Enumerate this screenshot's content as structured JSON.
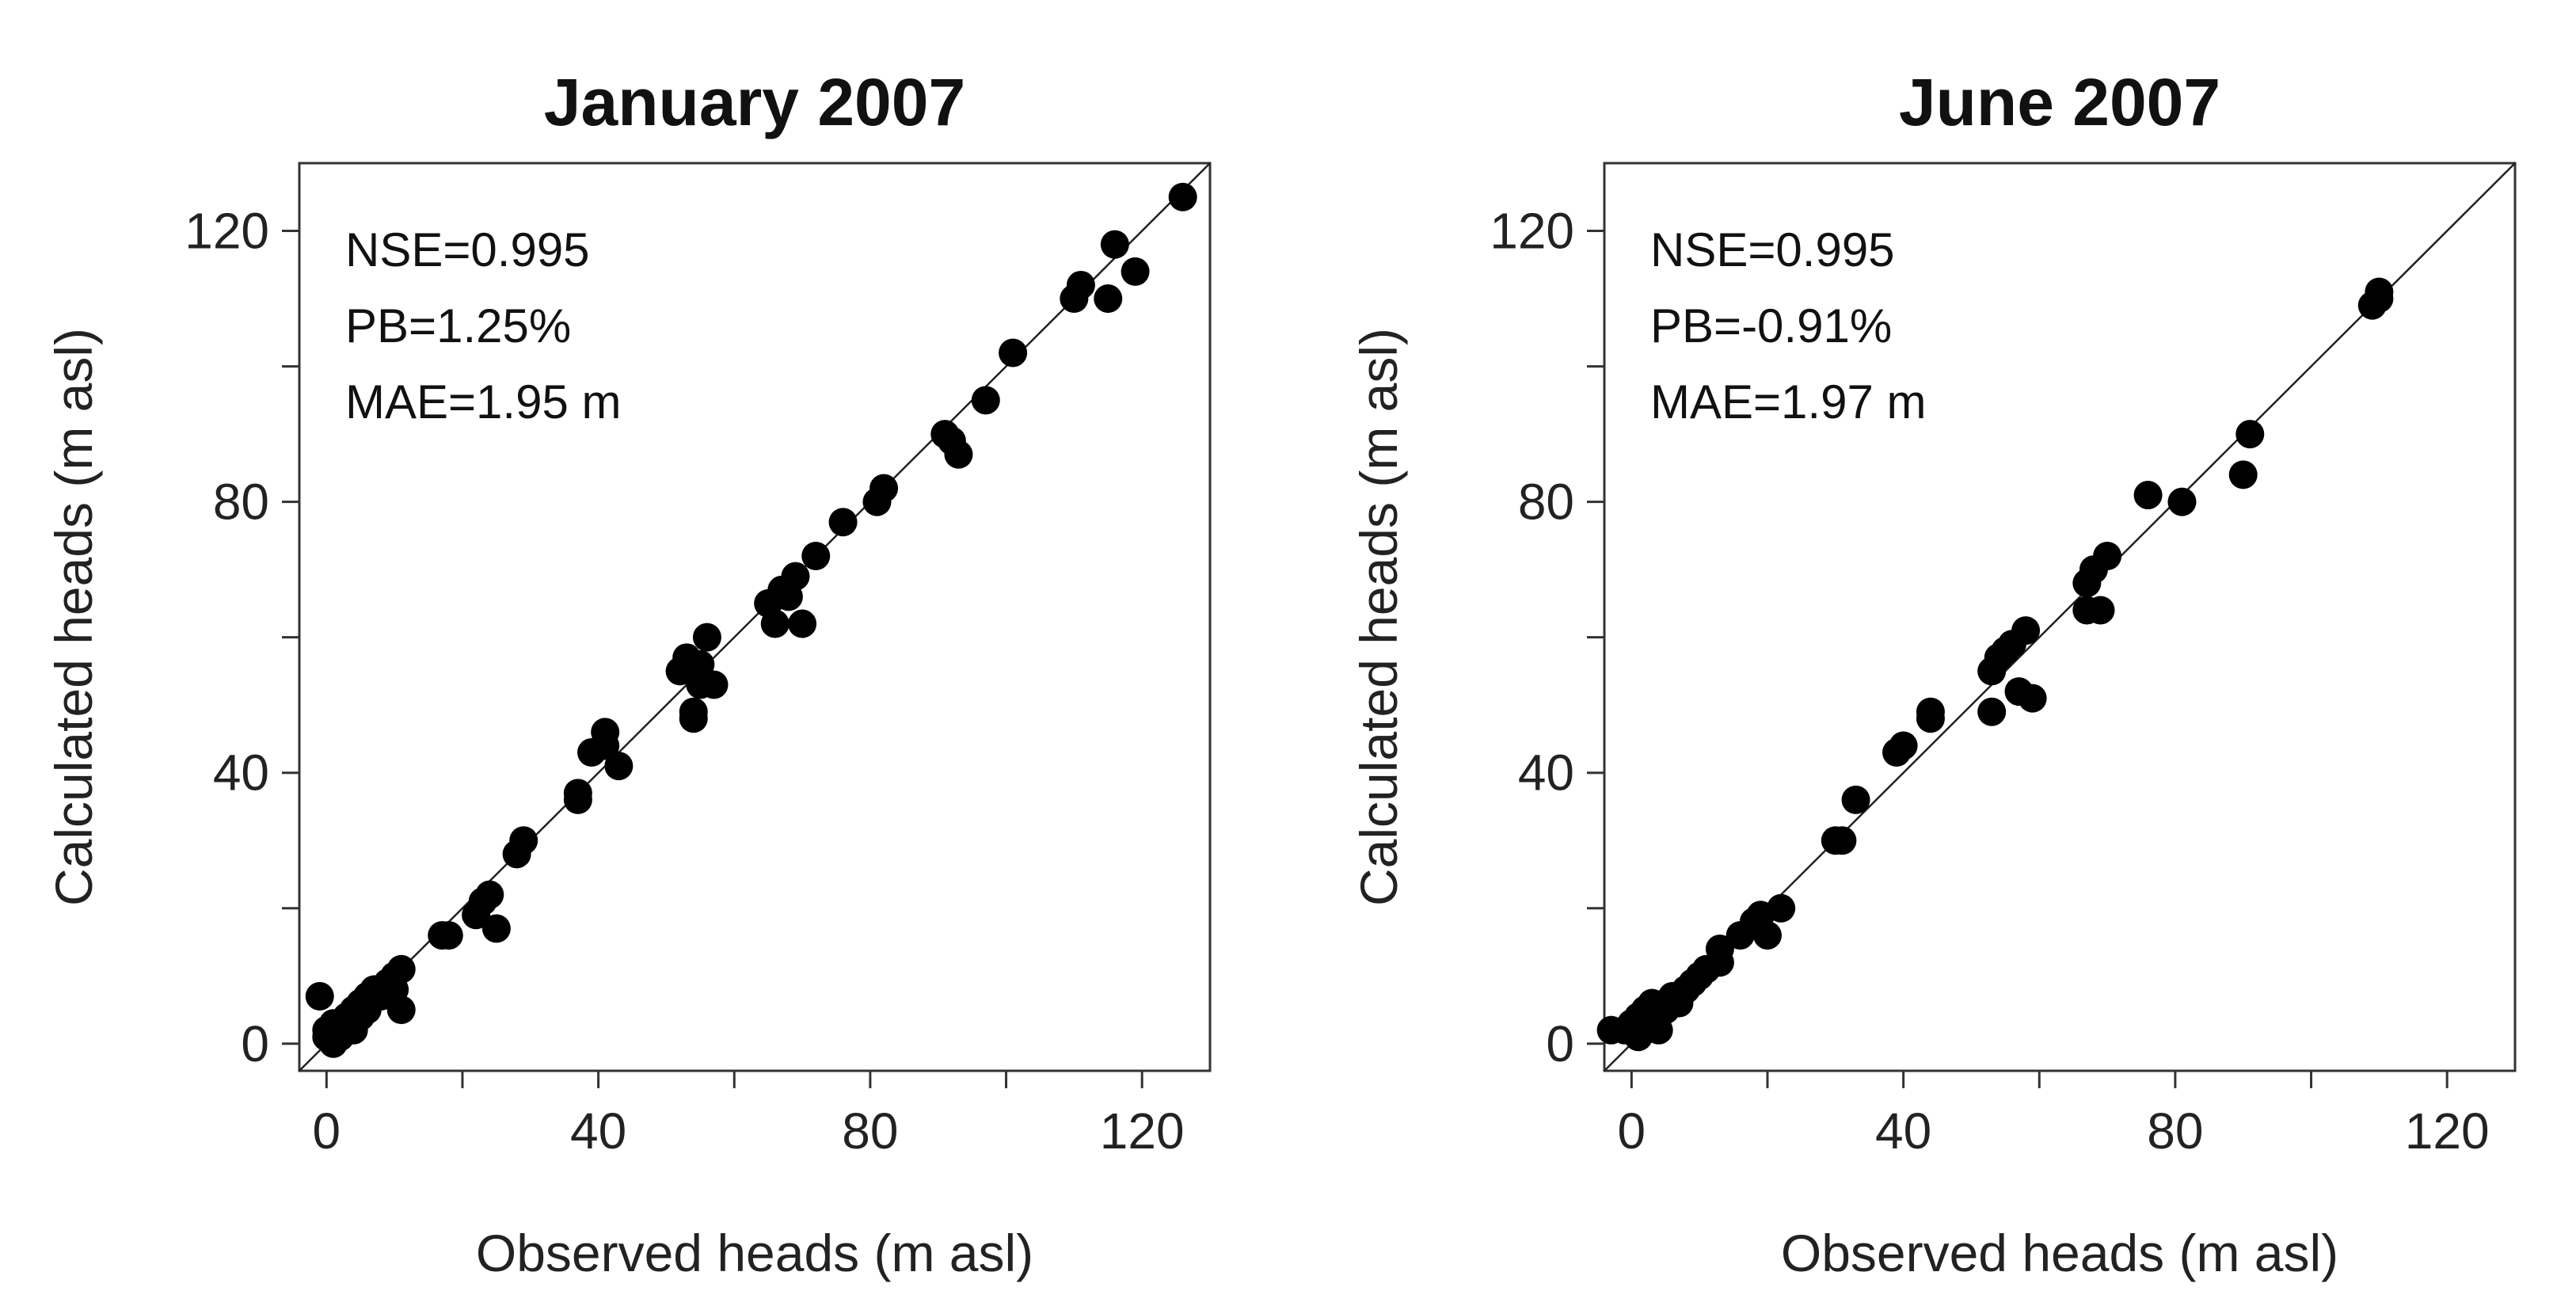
{
  "chart_data": [
    {
      "type": "scatter",
      "title": "January 2007",
      "xlabel": "Observed heads (m asl)",
      "ylabel": "Calculated heads (m asl)",
      "xlim": [
        -4,
        130
      ],
      "ylim": [
        -4,
        130
      ],
      "xticks": [
        0,
        40,
        80,
        120
      ],
      "yticks": [
        0,
        40,
        80,
        120
      ],
      "minor_ticks": [
        20,
        60,
        100
      ],
      "reference_line": "1:1",
      "annotations": [
        "NSE=0.995",
        "PB=1.25%",
        "MAE=1.95 m"
      ],
      "points": [
        [
          -1,
          7
        ],
        [
          0,
          2
        ],
        [
          0,
          1
        ],
        [
          1,
          0
        ],
        [
          1,
          3
        ],
        [
          2,
          1
        ],
        [
          2,
          2
        ],
        [
          3,
          3
        ],
        [
          3,
          4
        ],
        [
          4,
          2
        ],
        [
          4,
          5
        ],
        [
          5,
          4
        ],
        [
          5,
          6
        ],
        [
          6,
          5
        ],
        [
          6,
          7
        ],
        [
          7,
          8
        ],
        [
          8,
          7
        ],
        [
          9,
          9
        ],
        [
          10,
          8
        ],
        [
          10,
          10
        ],
        [
          11,
          11
        ],
        [
          11,
          5
        ],
        [
          17,
          16
        ],
        [
          18,
          16
        ],
        [
          22,
          19
        ],
        [
          23,
          21
        ],
        [
          24,
          22
        ],
        [
          25,
          17
        ],
        [
          28,
          28
        ],
        [
          29,
          30
        ],
        [
          37,
          36
        ],
        [
          37,
          37
        ],
        [
          39,
          43
        ],
        [
          41,
          44
        ],
        [
          41,
          46
        ],
        [
          43,
          41
        ],
        [
          52,
          55
        ],
        [
          53,
          57
        ],
        [
          54,
          48
        ],
        [
          54,
          49
        ],
        [
          55,
          53
        ],
        [
          55,
          56
        ],
        [
          56,
          60
        ],
        [
          57,
          53
        ],
        [
          65,
          65
        ],
        [
          66,
          62
        ],
        [
          67,
          67
        ],
        [
          68,
          66
        ],
        [
          69,
          69
        ],
        [
          70,
          62
        ],
        [
          72,
          72
        ],
        [
          76,
          77
        ],
        [
          81,
          80
        ],
        [
          82,
          82
        ],
        [
          91,
          90
        ],
        [
          92,
          89
        ],
        [
          93,
          87
        ],
        [
          97,
          95
        ],
        [
          101,
          102
        ],
        [
          110,
          110
        ],
        [
          111,
          112
        ],
        [
          115,
          110
        ],
        [
          116,
          118
        ],
        [
          119,
          114
        ],
        [
          126,
          125
        ]
      ]
    },
    {
      "type": "scatter",
      "title": "June 2007",
      "xlabel": "Observed heads (m asl)",
      "ylabel": "Calculated heads (m asl)",
      "xlim": [
        -4,
        130
      ],
      "ylim": [
        -4,
        130
      ],
      "xticks": [
        0,
        40,
        80,
        120
      ],
      "yticks": [
        0,
        40,
        80,
        120
      ],
      "minor_ticks": [
        20,
        60,
        100
      ],
      "reference_line": "1:1",
      "annotations": [
        "NSE=0.995",
        "PB=-0.91%",
        "MAE=1.97 m"
      ],
      "points": [
        [
          -3,
          2
        ],
        [
          -1,
          2
        ],
        [
          0,
          3
        ],
        [
          1,
          1
        ],
        [
          1,
          4
        ],
        [
          2,
          2
        ],
        [
          2,
          5
        ],
        [
          3,
          3
        ],
        [
          3,
          6
        ],
        [
          4,
          4
        ],
        [
          4,
          2
        ],
        [
          5,
          5
        ],
        [
          5,
          6
        ],
        [
          6,
          7
        ],
        [
          7,
          6
        ],
        [
          8,
          8
        ],
        [
          9,
          9
        ],
        [
          10,
          10
        ],
        [
          11,
          11
        ],
        [
          13,
          14
        ],
        [
          13,
          12
        ],
        [
          16,
          16
        ],
        [
          18,
          18
        ],
        [
          19,
          19
        ],
        [
          20,
          16
        ],
        [
          22,
          20
        ],
        [
          30,
          30
        ],
        [
          31,
          30
        ],
        [
          33,
          36
        ],
        [
          39,
          43
        ],
        [
          40,
          44
        ],
        [
          44,
          49
        ],
        [
          44,
          48
        ],
        [
          53,
          55
        ],
        [
          53,
          49
        ],
        [
          54,
          57
        ],
        [
          55,
          58
        ],
        [
          56,
          59
        ],
        [
          57,
          52
        ],
        [
          58,
          61
        ],
        [
          59,
          51
        ],
        [
          67,
          64
        ],
        [
          67,
          68
        ],
        [
          68,
          70
        ],
        [
          69,
          64
        ],
        [
          70,
          72
        ],
        [
          76,
          81
        ],
        [
          81,
          80
        ],
        [
          90,
          84
        ],
        [
          91,
          90
        ],
        [
          109,
          109
        ],
        [
          110,
          111
        ],
        [
          110,
          110
        ]
      ]
    }
  ]
}
